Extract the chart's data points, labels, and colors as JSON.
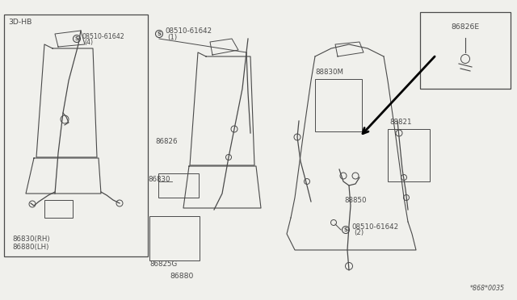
{
  "bg_color": "#f0f0ec",
  "line_color": "#4a4a4a",
  "title_diagram": "*868*0035",
  "labels": {
    "top_left_box": "3D-HB",
    "screw1_text": "08510-61642",
    "screw1_num": "(4)",
    "screw2_text": "08510-61642",
    "screw2_num": "(1)",
    "bottom_left1": "86830(RH)",
    "bottom_left2": "86880(LH)",
    "mid_left_label": "86830",
    "mid_label1": "86826",
    "mid_label2": "86825G",
    "mid_label3": "86880",
    "rear_label1": "88830M",
    "rear_label2": "88821",
    "rear_label3": "88850",
    "rear_screw_text": "08510-61642",
    "rear_screw_num": "(2)",
    "inset_label": "86826E"
  }
}
